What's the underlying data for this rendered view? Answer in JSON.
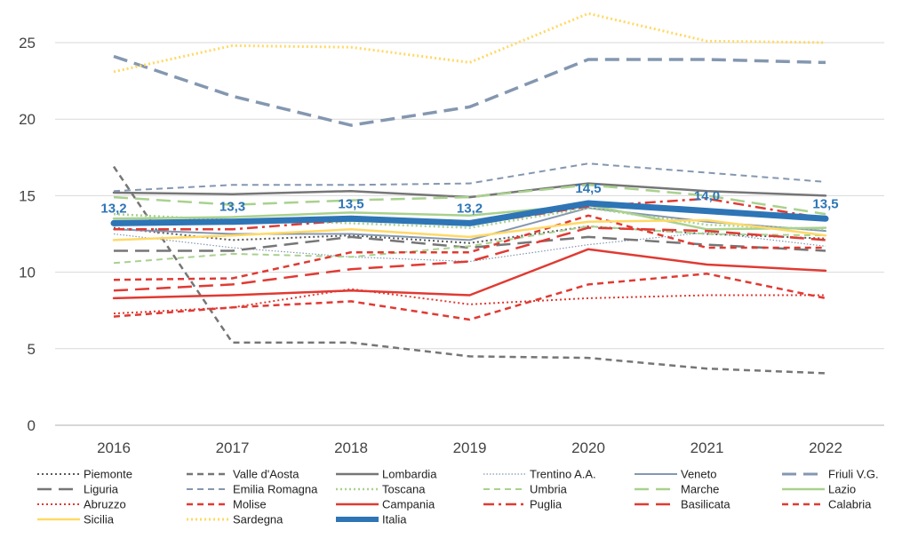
{
  "chart_data": {
    "type": "line",
    "title": "",
    "xlabel": "",
    "ylabel": "",
    "ylim": [
      0,
      27
    ],
    "yticks": [
      0,
      5,
      10,
      15,
      20,
      25
    ],
    "categories": [
      "2016",
      "2017",
      "2018",
      "2019",
      "2020",
      "2021",
      "2022"
    ],
    "grid": true,
    "legend_position": "bottom",
    "series": [
      {
        "name": "Piemonte",
        "values": [
          12.9,
          12.1,
          12.4,
          11.9,
          13.0,
          12.5,
          12.2
        ],
        "color": "#595959",
        "dash": "dot",
        "width": 2
      },
      {
        "name": "Valle d'Aosta",
        "values": [
          16.9,
          5.4,
          5.4,
          4.5,
          4.4,
          3.7,
          3.4
        ],
        "color": "#767676",
        "dash": "dash",
        "width": 2.5
      },
      {
        "name": "Lombardia",
        "values": [
          15.2,
          15.1,
          15.3,
          14.9,
          15.8,
          15.3,
          15.0
        ],
        "color": "#767676",
        "dash": "solid",
        "width": 2.5
      },
      {
        "name": "Trentino A.A.",
        "values": [
          12.5,
          11.6,
          11.0,
          10.7,
          11.8,
          12.6,
          11.7
        ],
        "color": "#8497B0",
        "dash": "dot-thin",
        "width": 1.2
      },
      {
        "name": "Veneto",
        "values": [
          12.8,
          12.5,
          12.5,
          12.1,
          14.2,
          13.3,
          12.7
        ],
        "color": "#8497B0",
        "dash": "solid",
        "width": 2
      },
      {
        "name": "Friuli V.G.",
        "values": [
          24.1,
          21.5,
          19.6,
          20.8,
          23.9,
          23.9,
          23.7
        ],
        "color": "#8497B0",
        "dash": "longdash",
        "width": 3.5
      },
      {
        "name": "Liguria",
        "values": [
          11.4,
          11.4,
          12.3,
          11.6,
          12.3,
          11.8,
          11.4
        ],
        "color": "#767676",
        "dash": "longdash",
        "width": 2.5
      },
      {
        "name": "Emilia Romagna",
        "values": [
          15.3,
          15.7,
          15.7,
          15.8,
          17.1,
          16.5,
          15.9
        ],
        "color": "#8497B0",
        "dash": "dash",
        "width": 2
      },
      {
        "name": "Toscana",
        "values": [
          13.8,
          13.4,
          13.2,
          12.9,
          14.2,
          13.1,
          12.8
        ],
        "color": "#A9D18E",
        "dash": "dot",
        "width": 2.5
      },
      {
        "name": "Umbria",
        "values": [
          10.6,
          11.2,
          11.0,
          11.7,
          13.0,
          12.5,
          12.4
        ],
        "color": "#A9D18E",
        "dash": "dash",
        "width": 2
      },
      {
        "name": "Marche",
        "values": [
          14.9,
          14.4,
          14.7,
          14.9,
          15.7,
          15.0,
          13.8
        ],
        "color": "#A9D18E",
        "dash": "longdash",
        "width": 2.5
      },
      {
        "name": "Lazio",
        "values": [
          13.5,
          13.6,
          13.9,
          13.7,
          14.4,
          12.8,
          12.9
        ],
        "color": "#A9D18E",
        "dash": "solid",
        "width": 2.5
      },
      {
        "name": "Abruzzo",
        "values": [
          7.3,
          7.7,
          8.9,
          7.9,
          8.3,
          8.5,
          8.5
        ],
        "color": "#E03A33",
        "dash": "dot",
        "width": 2
      },
      {
        "name": "Molise",
        "values": [
          9.5,
          9.6,
          11.3,
          11.3,
          13.7,
          11.6,
          11.6
        ],
        "color": "#E03A33",
        "dash": "dash",
        "width": 2.5
      },
      {
        "name": "Campania",
        "values": [
          8.3,
          8.5,
          8.8,
          8.5,
          11.5,
          10.5,
          10.1
        ],
        "color": "#E03A33",
        "dash": "solid",
        "width": 2.5
      },
      {
        "name": "Puglia",
        "values": [
          12.8,
          12.8,
          13.4,
          13.1,
          14.3,
          14.8,
          13.5
        ],
        "color": "#E03A33",
        "dash": "dashdot",
        "width": 2.5
      },
      {
        "name": "Basilicata",
        "values": [
          8.8,
          9.2,
          10.2,
          10.7,
          12.9,
          12.7,
          12.1
        ],
        "color": "#E03A33",
        "dash": "longdash",
        "width": 2.5
      },
      {
        "name": "Calabria",
        "values": [
          7.1,
          7.7,
          8.1,
          6.9,
          9.2,
          9.9,
          8.3
        ],
        "color": "#E03A33",
        "dash": "dash",
        "width": 2.5
      },
      {
        "name": "Sicilia",
        "values": [
          12.1,
          12.4,
          12.8,
          12.3,
          13.3,
          13.4,
          12.4
        ],
        "color": "#FFD966",
        "dash": "solid",
        "width": 2.5
      },
      {
        "name": "Sardegna",
        "values": [
          23.1,
          24.8,
          24.7,
          23.7,
          26.9,
          25.1,
          25.0
        ],
        "color": "#FFD966",
        "dash": "dot",
        "width": 3
      },
      {
        "name": "Italia",
        "values": [
          13.2,
          13.3,
          13.5,
          13.2,
          14.5,
          14.0,
          13.5
        ],
        "color": "#2E75B6",
        "dash": "solid",
        "width": 7
      }
    ],
    "data_labels": {
      "series": "Italia",
      "labels": [
        "13,2",
        "13,3",
        "13,5",
        "13,2",
        "14,5",
        "14,0",
        "13,5"
      ]
    }
  }
}
